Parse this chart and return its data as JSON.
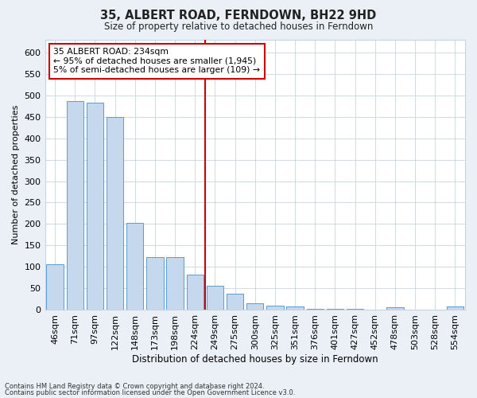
{
  "title": "35, ALBERT ROAD, FERNDOWN, BH22 9HD",
  "subtitle": "Size of property relative to detached houses in Ferndown",
  "xlabel": "Distribution of detached houses by size in Ferndown",
  "ylabel": "Number of detached properties",
  "categories": [
    "46sqm",
    "71sqm",
    "97sqm",
    "122sqm",
    "148sqm",
    "173sqm",
    "198sqm",
    "224sqm",
    "249sqm",
    "275sqm",
    "300sqm",
    "325sqm",
    "351sqm",
    "376sqm",
    "401sqm",
    "427sqm",
    "452sqm",
    "478sqm",
    "503sqm",
    "528sqm",
    "554sqm"
  ],
  "values": [
    105,
    487,
    484,
    450,
    202,
    122,
    122,
    82,
    55,
    38,
    15,
    10,
    8,
    2,
    2,
    2,
    0,
    6,
    0,
    0,
    7
  ],
  "bar_color": "#c5d8ed",
  "bar_edge_color": "#5b9bd5",
  "vline_x": 7.5,
  "vline_color": "#cc0000",
  "annotation_text": "35 ALBERT ROAD: 234sqm\n← 95% of detached houses are smaller (1,945)\n5% of semi-detached houses are larger (109) →",
  "annotation_box_color": "#ffffff",
  "annotation_box_edge": "#cc0000",
  "ylim": [
    0,
    630
  ],
  "yticks": [
    0,
    50,
    100,
    150,
    200,
    250,
    300,
    350,
    400,
    450,
    500,
    550,
    600
  ],
  "footer1": "Contains HM Land Registry data © Crown copyright and database right 2024.",
  "footer2": "Contains public sector information licensed under the Open Government Licence v3.0.",
  "bg_color": "#eaf0f6",
  "plot_bg_color": "#ffffff",
  "grid_color": "#c8d4e0"
}
